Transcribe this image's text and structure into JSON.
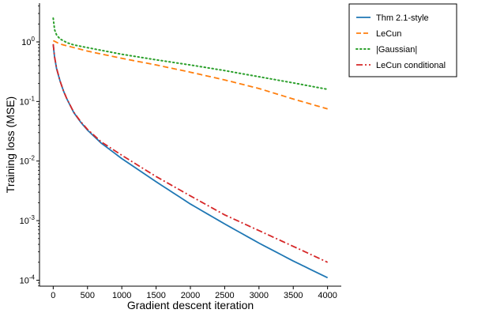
{
  "chart_data": {
    "type": "line",
    "title": "",
    "xlabel": "Gradient descent iteration",
    "ylabel": "Training loss (MSE)",
    "yscale": "log",
    "xlim": [
      -200,
      4200
    ],
    "ylim_log10": [
      -4.1,
      0.65
    ],
    "x_ticks": [
      0,
      500,
      1000,
      1500,
      2000,
      2500,
      3000,
      3500,
      4000
    ],
    "y_ticks": [
      {
        "base": "10",
        "exp": "0"
      },
      {
        "base": "10",
        "exp": "-1"
      },
      {
        "base": "10",
        "exp": "-2"
      },
      {
        "base": "10",
        "exp": "-3"
      },
      {
        "base": "10",
        "exp": "-4"
      }
    ],
    "legend_position": "top-right",
    "series": [
      {
        "name": "Thm 2.1-style",
        "color": "#1f77b4",
        "style": "solid",
        "x": [
          0,
          20,
          50,
          100,
          150,
          200,
          300,
          400,
          500,
          700,
          1000,
          1500,
          2000,
          2500,
          3000,
          3500,
          4000
        ],
        "y": [
          0.9,
          0.55,
          0.35,
          0.22,
          0.15,
          0.11,
          0.065,
          0.045,
          0.033,
          0.02,
          0.011,
          0.0045,
          0.0019,
          0.00088,
          0.00042,
          0.00021,
          0.00011
        ]
      },
      {
        "name": "LeCun",
        "color": "#ff7f0e",
        "style": "dashed",
        "x": [
          0,
          100,
          500,
          1000,
          1500,
          2000,
          2500,
          3000,
          3500,
          4000
        ],
        "y": [
          1.05,
          0.92,
          0.7,
          0.53,
          0.41,
          0.31,
          0.23,
          0.165,
          0.11,
          0.075
        ]
      },
      {
        "name": "|Gaussian|",
        "color": "#2ca02c",
        "style": "dotted",
        "x": [
          0,
          20,
          50,
          100,
          200,
          300,
          500,
          1000,
          1500,
          2000,
          2500,
          3000,
          3500,
          4000
        ],
        "y": [
          2.5,
          1.6,
          1.3,
          1.12,
          0.97,
          0.89,
          0.8,
          0.62,
          0.5,
          0.41,
          0.33,
          0.26,
          0.205,
          0.16
        ]
      },
      {
        "name": "LeCun conditional",
        "color": "#d62728",
        "style": "dashdot",
        "x": [
          0,
          20,
          50,
          100,
          150,
          200,
          300,
          400,
          500,
          700,
          1000,
          1500,
          2000,
          2500,
          3000,
          3500,
          4000
        ],
        "y": [
          0.92,
          0.56,
          0.36,
          0.22,
          0.15,
          0.11,
          0.066,
          0.046,
          0.034,
          0.021,
          0.0125,
          0.0055,
          0.0026,
          0.00125,
          0.00068,
          0.00037,
          0.0002
        ]
      }
    ]
  }
}
